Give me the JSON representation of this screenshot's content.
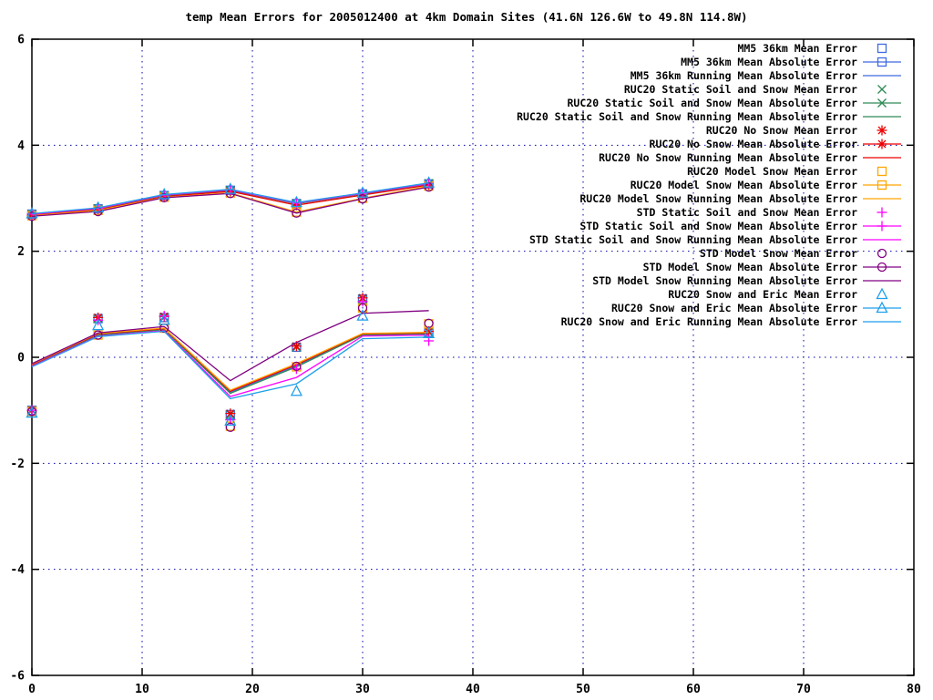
{
  "title": "temp Mean Errors for 2005012400 at 4km Domain Sites (41.6N 126.6W to 49.8N 114.8W)",
  "chart_data": {
    "type": "line",
    "title": "temp Mean Errors for 2005012400 at 4km Domain Sites (41.6N 126.6W to 49.8N 114.8W)",
    "xlabel": "",
    "ylabel": "",
    "xlim": [
      0,
      80
    ],
    "ylim": [
      -6,
      6
    ],
    "xticks": [
      0,
      10,
      20,
      30,
      40,
      50,
      60,
      70,
      80
    ],
    "yticks": [
      -6,
      -4,
      -2,
      0,
      2,
      4,
      6
    ],
    "grid": "dotted-blue",
    "legend_position": "top-right-inside",
    "x": [
      0,
      6,
      12,
      18,
      24,
      30,
      36
    ],
    "colors": {
      "blue": "#4169e1",
      "green": "#2e8b57",
      "red": "#ee0000",
      "orange": "#ffa500",
      "magenta": "#ff00ff",
      "purple": "#800080",
      "skyblue": "#1e9feb",
      "grid": "#0000aa",
      "axis": "#000000"
    },
    "series": [
      {
        "name": "MM5 36km Mean Error",
        "color": "blue",
        "marker": "square",
        "style": "markers",
        "values": [
          -1.0,
          0.73,
          0.75,
          -1.08,
          0.19,
          1.1,
          0.47
        ]
      },
      {
        "name": "MM5 36km Mean Absolute Error",
        "color": "blue",
        "marker": "square",
        "style": "line+markers",
        "values": [
          2.7,
          2.8,
          3.05,
          3.15,
          2.9,
          3.08,
          3.27
        ]
      },
      {
        "name": "MM5 36km Running Mean Absolute Error",
        "color": "blue",
        "marker": "none",
        "style": "line",
        "values": [
          -0.15,
          0.43,
          0.53,
          -0.66,
          -0.16,
          0.43,
          0.45
        ]
      },
      {
        "name": "RUC20 Static Soil and Snow Mean Error",
        "color": "green",
        "marker": "x",
        "style": "markers",
        "values": [
          -1.0,
          0.73,
          0.75,
          -1.08,
          0.19,
          1.1,
          0.47
        ]
      },
      {
        "name": "RUC20 Static Soil and Snow Mean Absolute Error",
        "color": "green",
        "marker": "x",
        "style": "line+markers",
        "values": [
          2.7,
          2.8,
          3.05,
          3.15,
          2.9,
          3.08,
          3.28
        ]
      },
      {
        "name": "RUC20 Static Soil and Snow Running Mean Absolute Error",
        "color": "green",
        "marker": "none",
        "style": "line",
        "values": [
          -0.16,
          0.42,
          0.52,
          -0.68,
          -0.18,
          0.42,
          0.44
        ]
      },
      {
        "name": "RUC20 No Snow Mean Error",
        "color": "red",
        "marker": "asterisk",
        "style": "markers",
        "values": [
          -1.0,
          0.75,
          0.77,
          -1.06,
          0.21,
          1.12,
          0.49
        ]
      },
      {
        "name": "RUC20 No Snow Mean Absolute Error",
        "color": "red",
        "marker": "asterisk",
        "style": "line+markers",
        "values": [
          2.68,
          2.78,
          3.03,
          3.13,
          2.87,
          3.06,
          3.25
        ]
      },
      {
        "name": "RUC20 No Snow Running Mean Absolute Error",
        "color": "red",
        "marker": "none",
        "style": "line",
        "values": [
          -0.14,
          0.44,
          0.54,
          -0.64,
          -0.14,
          0.44,
          0.46
        ]
      },
      {
        "name": "RUC20 Model Snow Mean Error",
        "color": "orange",
        "marker": "square",
        "style": "markers",
        "values": [
          -1.02,
          0.42,
          0.55,
          -1.3,
          -0.18,
          0.93,
          0.63
        ]
      },
      {
        "name": "RUC20 Model Snow Mean Absolute Error",
        "color": "orange",
        "marker": "square",
        "style": "line+markers",
        "values": [
          2.67,
          2.77,
          3.02,
          3.1,
          2.74,
          3.0,
          3.23
        ]
      },
      {
        "name": "RUC20 Model Snow Running Mean Absolute Error",
        "color": "orange",
        "marker": "none",
        "style": "line",
        "values": [
          -0.13,
          0.45,
          0.55,
          -0.62,
          -0.12,
          0.45,
          0.47
        ]
      },
      {
        "name": "STD Static Soil and Snow Mean Error",
        "color": "magenta",
        "marker": "plus",
        "style": "markers",
        "values": [
          -1.0,
          0.7,
          0.78,
          -1.18,
          -0.22,
          1.05,
          0.31
        ]
      },
      {
        "name": "STD Static Soil and Snow Mean Absolute Error",
        "color": "magenta",
        "marker": "plus",
        "style": "line+markers",
        "values": [
          2.7,
          2.81,
          3.06,
          3.16,
          2.91,
          3.09,
          3.28
        ]
      },
      {
        "name": "STD Static Soil and Snow Running Mean Absolute Error",
        "color": "magenta",
        "marker": "none",
        "style": "line",
        "values": [
          -0.17,
          0.4,
          0.5,
          -0.74,
          -0.38,
          0.4,
          0.42
        ]
      },
      {
        "name": "STD Model Snow Mean Error",
        "color": "purple",
        "marker": "circle",
        "style": "markers",
        "values": [
          -1.02,
          0.42,
          0.55,
          -1.32,
          -0.17,
          0.93,
          0.64
        ]
      },
      {
        "name": "STD Model Snow Mean Absolute Error",
        "color": "purple",
        "marker": "circle",
        "style": "line+markers",
        "values": [
          2.66,
          2.75,
          3.01,
          3.09,
          2.72,
          2.99,
          3.21
        ]
      },
      {
        "name": "STD Model Snow Running Mean Absolute Error",
        "color": "purple",
        "marker": "none",
        "style": "line",
        "values": [
          -0.12,
          0.46,
          0.58,
          -0.44,
          0.28,
          0.83,
          0.88
        ]
      },
      {
        "name": "RUC20 Snow and Eric Mean Error",
        "color": "skyblue",
        "marker": "triangle",
        "style": "markers",
        "values": [
          -1.05,
          0.6,
          0.7,
          -1.2,
          -0.64,
          0.78,
          0.45
        ]
      },
      {
        "name": "RUC20 Snow and Eric Mean Absolute Error",
        "color": "skyblue",
        "marker": "triangle",
        "style": "line+markers",
        "values": [
          2.71,
          2.82,
          3.07,
          3.17,
          2.92,
          3.1,
          3.29
        ]
      },
      {
        "name": "RUC20 Snow and Eric Running Mean Absolute Error",
        "color": "skyblue",
        "marker": "none",
        "style": "line",
        "values": [
          -0.18,
          0.39,
          0.49,
          -0.78,
          -0.5,
          0.35,
          0.38
        ]
      }
    ]
  }
}
